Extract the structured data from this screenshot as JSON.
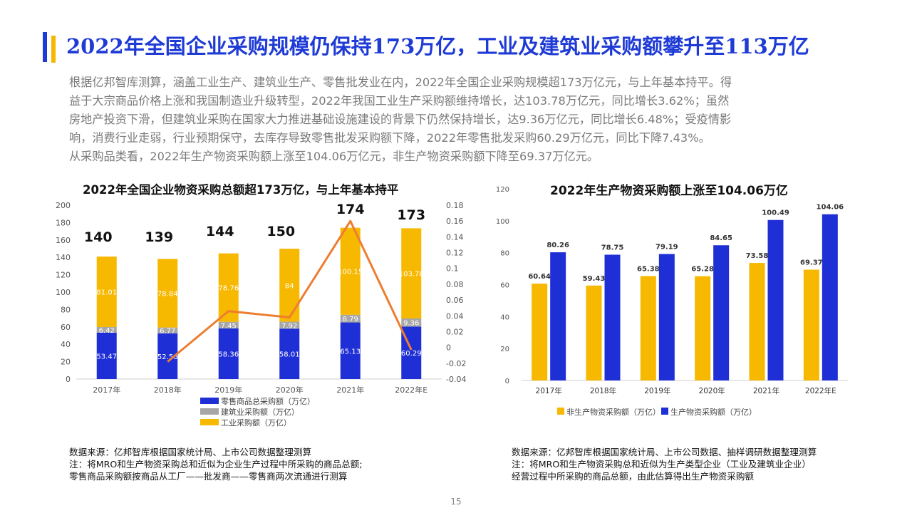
{
  "title": "2022年全国企业采购规模仍保持173万亿，工业及建筑业采购额攀升至113万亿",
  "paragraph": [
    "根据亿邦智库测算，涵盖工业生产、建筑业生产、零售批发业在内，2022年全国企业采购规模超173万亿元，与上年基本持平。得",
    "益于大宗商品价格上涨和我国制造业升级转型，2022年我国工业生产采购额维持增长，达103.78万亿元，同比增长3.62%；虽然",
    "房地产投资下滑，但建筑业采购在国家大力推进基础设施建设的背景下仍然保持增长，达9.36万亿元，同比增长6.48%；受疫情影",
    "响，消费行业走弱，行业预期保守，去库存导致零售批发采购额下降，2022年零售批发采购60.29万亿元，同比下降7.43%。",
    "从采购品类看，2022年生产物资采购额上涨至104.06万亿元，非生产物资采购额下降至69.37万亿元。"
  ],
  "chart_data": [
    {
      "type": "bar",
      "stacked": true,
      "title": "2022年全国企业物资采购总额超173万亿，与上年基本持平",
      "categories": [
        "2017年",
        "2018年",
        "2019年",
        "2020年",
        "2021年",
        "2022年E"
      ],
      "ylim": [
        0,
        200
      ],
      "y_ticks": [
        "0",
        "20",
        "40",
        "60",
        "80",
        "100",
        "120",
        "140",
        "160",
        "180",
        "200"
      ],
      "y2lim": [
        -0.04,
        0.18
      ],
      "y2_ticks": [
        "-0.04",
        "-0.02",
        "0",
        "0.02",
        "0.04",
        "0.06",
        "0.08",
        "0.1",
        "0.12",
        "0.14",
        "0.16",
        "0.18"
      ],
      "series": [
        {
          "name": "零售商品总采购额（万亿）",
          "color": "#1f2fd6",
          "values": [
            53.47,
            52.56,
            58.36,
            58.01,
            65.13,
            60.29
          ],
          "labels": [
            "53.47",
            "52.56",
            "58.36",
            "58.01",
            "65.13",
            "60.29"
          ]
        },
        {
          "name": "建筑业采购额（万亿）",
          "color": "#a6a6a6",
          "values": [
            6.42,
            6.77,
            7.45,
            7.92,
            8.79,
            9.36
          ],
          "labels": [
            "6.42",
            "6.77",
            "7.45",
            "7.92",
            "8.79",
            "9.36"
          ]
        },
        {
          "name": "工业采购额（万亿）",
          "color": "#f7b800",
          "values": [
            81.01,
            78.84,
            78.76,
            84,
            100.15,
            103.78
          ],
          "labels": [
            "81.01",
            "78.84",
            "78.76",
            "84",
            "100.15",
            "103.78"
          ]
        }
      ],
      "growth_line": {
        "color": "#ed7d31",
        "values": [
          null,
          -0.018,
          0.046,
          0.038,
          0.16,
          -0.003
        ]
      },
      "totals": [
        "140",
        "139",
        "144",
        "150",
        "174",
        "173"
      ],
      "legend_position": "bottom"
    },
    {
      "type": "bar",
      "title": "2022年生产物资采购额上涨至104.06万亿",
      "categories": [
        "2017年",
        "2018年",
        "2019年",
        "2020年",
        "2021年",
        "2022年E"
      ],
      "ylim": [
        0,
        120
      ],
      "y_ticks": [
        "0",
        "20",
        "40",
        "60",
        "80",
        "100",
        "120"
      ],
      "series": [
        {
          "name": "非生产物资采购额（万亿）",
          "color": "#f7b800",
          "values": [
            60.64,
            59.43,
            65.38,
            65.28,
            73.58,
            69.37
          ],
          "labels": [
            "60.64",
            "59.43",
            "65.38",
            "65.28",
            "73.58",
            "69.37"
          ]
        },
        {
          "name": "生产物资采购额（万亿）",
          "color": "#1f2fd6",
          "values": [
            80.26,
            78.75,
            79.19,
            84.65,
            100.49,
            104.06
          ],
          "labels": [
            "80.26",
            "78.75",
            "79.19",
            "84.65",
            "100.49",
            "104.06"
          ]
        }
      ],
      "legend_position": "bottom"
    }
  ],
  "footnote_left": [
    "数据来源：亿邦智库根据国家统计局、上市公司数据整理测算",
    "注：将MRO和生产物资采购总和近似为企业生产过程中所采购的商品总额;",
    "零售商品采购额按商品从工厂——批发商——零售商两次流通进行测算"
  ],
  "footnote_right": [
    "数据来源：亿邦智库根据国家统计局、上市公司数据、抽样调研数据整理测算",
    "注：将MRO和生产物资采购总和近似为生产类型企业（工业及建筑业企业）",
    "经营过程中所采购的商品总额，由此估算得出生产物资采购额"
  ],
  "page_number": "15"
}
